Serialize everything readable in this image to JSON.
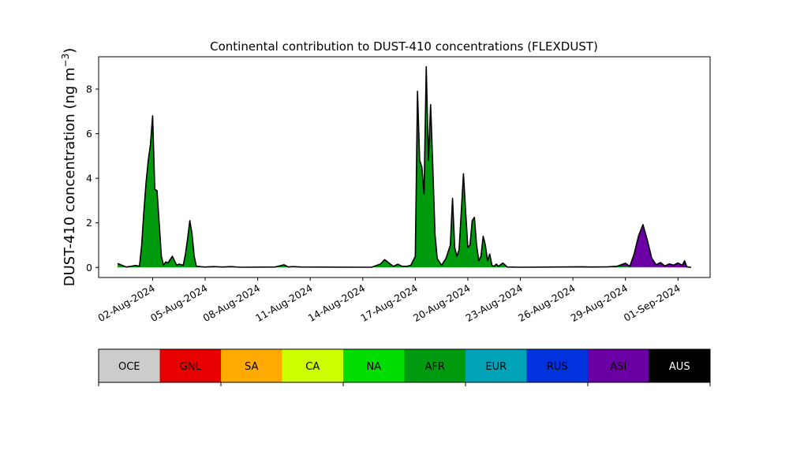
{
  "chart_data": {
    "type": "area",
    "title": "Continental contribution to DUST-410 concentrations (FLEXDUST)",
    "ylabel": "DUST-410 concentration (ng m",
    "ylabel_unit_exponent": "−3",
    "ylabel_close": ")",
    "ylim": [
      -0.45,
      9.45
    ],
    "xlim": [
      "2024-07-29T22:00",
      "2024-09-02T20:00"
    ],
    "yticks": [
      0,
      2,
      4,
      6,
      8
    ],
    "xticks": [
      "02-Aug-2024",
      "05-Aug-2024",
      "08-Aug-2024",
      "11-Aug-2024",
      "14-Aug-2024",
      "17-Aug-2024",
      "20-Aug-2024",
      "23-Aug-2024",
      "26-Aug-2024",
      "29-Aug-2024",
      "01-Sep-2024"
    ],
    "xtick_dates": [
      "2024-08-02",
      "2024-08-05",
      "2024-08-08",
      "2024-08-11",
      "2024-08-14",
      "2024-08-17",
      "2024-08-20",
      "2024-08-23",
      "2024-08-26",
      "2024-08-29",
      "2024-09-01"
    ],
    "grid": false,
    "stacked": true,
    "series_names_order": [
      "OCE",
      "GNL",
      "SA",
      "CA",
      "NA",
      "AFR",
      "EUR",
      "RUS",
      "ASI",
      "AUS"
    ],
    "series": [
      {
        "name": "AFR",
        "color": "#009a0e",
        "points": [
          [
            "2024-07-31T00:00",
            0.18
          ],
          [
            "2024-07-31T06:00",
            0.1
          ],
          [
            "2024-07-31T12:00",
            0.02
          ],
          [
            "2024-07-31T18:00",
            0.05
          ],
          [
            "2024-08-01T00:00",
            0.09
          ],
          [
            "2024-08-01T06:00",
            0.06
          ],
          [
            "2024-08-01T09:00",
            1.0
          ],
          [
            "2024-08-01T12:00",
            2.5
          ],
          [
            "2024-08-01T15:00",
            3.8
          ],
          [
            "2024-08-01T18:00",
            4.8
          ],
          [
            "2024-08-01T21:00",
            5.5
          ],
          [
            "2024-08-02T00:00",
            6.8
          ],
          [
            "2024-08-02T03:00",
            3.5
          ],
          [
            "2024-08-02T06:00",
            3.45
          ],
          [
            "2024-08-02T09:00",
            2.0
          ],
          [
            "2024-08-02T12:00",
            0.5
          ],
          [
            "2024-08-02T15:00",
            0.1
          ],
          [
            "2024-08-02T18:00",
            0.25
          ],
          [
            "2024-08-02T21:00",
            0.2
          ],
          [
            "2024-08-03T00:00",
            0.35
          ],
          [
            "2024-08-03T03:00",
            0.5
          ],
          [
            "2024-08-03T06:00",
            0.3
          ],
          [
            "2024-08-03T09:00",
            0.1
          ],
          [
            "2024-08-03T12:00",
            0.15
          ],
          [
            "2024-08-03T18:00",
            0.1
          ],
          [
            "2024-08-03T21:00",
            0.6
          ],
          [
            "2024-08-04T00:00",
            1.3
          ],
          [
            "2024-08-04T03:00",
            2.1
          ],
          [
            "2024-08-04T06:00",
            1.5
          ],
          [
            "2024-08-04T09:00",
            0.5
          ],
          [
            "2024-08-04T12:00",
            0.05
          ],
          [
            "2024-08-05T00:00",
            0.02
          ],
          [
            "2024-08-05T12:00",
            0.04
          ],
          [
            "2024-08-06T00:00",
            0.02
          ],
          [
            "2024-08-06T12:00",
            0.04
          ],
          [
            "2024-08-07T00:00",
            0.01
          ],
          [
            "2024-08-09T00:00",
            0.02
          ],
          [
            "2024-08-09T12:00",
            0.12
          ],
          [
            "2024-08-09T18:00",
            0.02
          ],
          [
            "2024-08-10T00:00",
            0.04
          ],
          [
            "2024-08-10T12:00",
            0.02
          ],
          [
            "2024-08-14T00:00",
            0.01
          ],
          [
            "2024-08-14T12:00",
            0.01
          ],
          [
            "2024-08-15T00:00",
            0.15
          ],
          [
            "2024-08-15T06:00",
            0.35
          ],
          [
            "2024-08-15T12:00",
            0.2
          ],
          [
            "2024-08-15T18:00",
            0.05
          ],
          [
            "2024-08-16T00:00",
            0.15
          ],
          [
            "2024-08-16T06:00",
            0.05
          ],
          [
            "2024-08-16T12:00",
            0.05
          ],
          [
            "2024-08-16T18:00",
            0.1
          ],
          [
            "2024-08-17T00:00",
            0.5
          ],
          [
            "2024-08-17T03:00",
            7.9
          ],
          [
            "2024-08-17T06:00",
            4.8
          ],
          [
            "2024-08-17T09:00",
            4.5
          ],
          [
            "2024-08-17T12:00",
            3.3
          ],
          [
            "2024-08-17T15:00",
            9.0
          ],
          [
            "2024-08-17T18:00",
            4.8
          ],
          [
            "2024-08-17T21:00",
            7.3
          ],
          [
            "2024-08-18T00:00",
            4.5
          ],
          [
            "2024-08-18T03:00",
            1.5
          ],
          [
            "2024-08-18T06:00",
            0.4
          ],
          [
            "2024-08-18T09:00",
            0.25
          ],
          [
            "2024-08-18T12:00",
            0.1
          ],
          [
            "2024-08-18T18:00",
            0.4
          ],
          [
            "2024-08-19T00:00",
            1.0
          ],
          [
            "2024-08-19T03:00",
            3.1
          ],
          [
            "2024-08-19T06:00",
            0.9
          ],
          [
            "2024-08-19T09:00",
            0.5
          ],
          [
            "2024-08-19T12:00",
            0.8
          ],
          [
            "2024-08-19T15:00",
            2.5
          ],
          [
            "2024-08-19T18:00",
            4.2
          ],
          [
            "2024-08-19T21:00",
            2.5
          ],
          [
            "2024-08-20T00:00",
            0.9
          ],
          [
            "2024-08-20T03:00",
            1.0
          ],
          [
            "2024-08-20T06:00",
            2.1
          ],
          [
            "2024-08-20T09:00",
            2.25
          ],
          [
            "2024-08-20T12:00",
            1.0
          ],
          [
            "2024-08-20T15:00",
            0.3
          ],
          [
            "2024-08-20T18:00",
            0.5
          ],
          [
            "2024-08-20T21:00",
            1.4
          ],
          [
            "2024-08-21T00:00",
            1.0
          ],
          [
            "2024-08-21T03:00",
            0.3
          ],
          [
            "2024-08-21T06:00",
            0.6
          ],
          [
            "2024-08-21T09:00",
            0.1
          ],
          [
            "2024-08-21T12:00",
            0.05
          ],
          [
            "2024-08-21T15:00",
            0.15
          ],
          [
            "2024-08-21T18:00",
            0.05
          ],
          [
            "2024-08-22T00:00",
            0.2
          ],
          [
            "2024-08-22T06:00",
            0.02
          ],
          [
            "2024-08-23T00:00",
            0.01
          ],
          [
            "2024-08-25T00:00",
            0.02
          ],
          [
            "2024-08-26T12:00",
            0.03
          ],
          [
            "2024-08-27T00:00",
            0.02
          ],
          [
            "2024-08-28T00:00",
            0.03
          ],
          [
            "2024-08-28T12:00",
            0.05
          ],
          [
            "2024-08-29T00:00",
            0.04
          ],
          [
            "2024-08-29T12:00",
            0.02
          ],
          [
            "2024-08-30T00:00",
            0.02
          ],
          [
            "2024-08-31T00:00",
            0.02
          ],
          [
            "2024-09-01T00:00",
            0.0
          ]
        ]
      },
      {
        "name": "ASI",
        "color": "#6a00a4",
        "points": [
          [
            "2024-07-31T00:00",
            0.0
          ],
          [
            "2024-08-28T12:00",
            0.0
          ],
          [
            "2024-08-29T00:00",
            0.15
          ],
          [
            "2024-08-29T06:00",
            0.02
          ],
          [
            "2024-08-29T12:00",
            0.6
          ],
          [
            "2024-08-29T18:00",
            1.4
          ],
          [
            "2024-08-30T00:00",
            1.9
          ],
          [
            "2024-08-30T06:00",
            1.2
          ],
          [
            "2024-08-30T12:00",
            0.4
          ],
          [
            "2024-08-30T18:00",
            0.1
          ],
          [
            "2024-08-31T00:00",
            0.2
          ],
          [
            "2024-08-31T06:00",
            0.05
          ],
          [
            "2024-08-31T12:00",
            0.15
          ],
          [
            "2024-08-31T18:00",
            0.1
          ],
          [
            "2024-09-01T00:00",
            0.2
          ],
          [
            "2024-09-01T06:00",
            0.1
          ],
          [
            "2024-09-01T09:00",
            0.3
          ],
          [
            "2024-09-01T12:00",
            0.03
          ],
          [
            "2024-09-01T18:00",
            0.0
          ]
        ]
      }
    ]
  },
  "legend": {
    "entries": [
      {
        "label": "OCE",
        "color": "#cccccc",
        "text_color": "#000000"
      },
      {
        "label": "GNL",
        "color": "#e80000",
        "text_color": "#000000"
      },
      {
        "label": "SA",
        "color": "#ffaa00",
        "text_color": "#000000"
      },
      {
        "label": "CA",
        "color": "#ccff00",
        "text_color": "#000000"
      },
      {
        "label": "NA",
        "color": "#00dd00",
        "text_color": "#000000"
      },
      {
        "label": "AFR",
        "color": "#009a0e",
        "text_color": "#000000"
      },
      {
        "label": "EUR",
        "color": "#00a3b8",
        "text_color": "#000000"
      },
      {
        "label": "RUS",
        "color": "#0033dd",
        "text_color": "#000000"
      },
      {
        "label": "ASI",
        "color": "#6a00a4",
        "text_color": "#000000"
      },
      {
        "label": "AUS",
        "color": "#000000",
        "text_color": "#ffffff"
      }
    ]
  }
}
